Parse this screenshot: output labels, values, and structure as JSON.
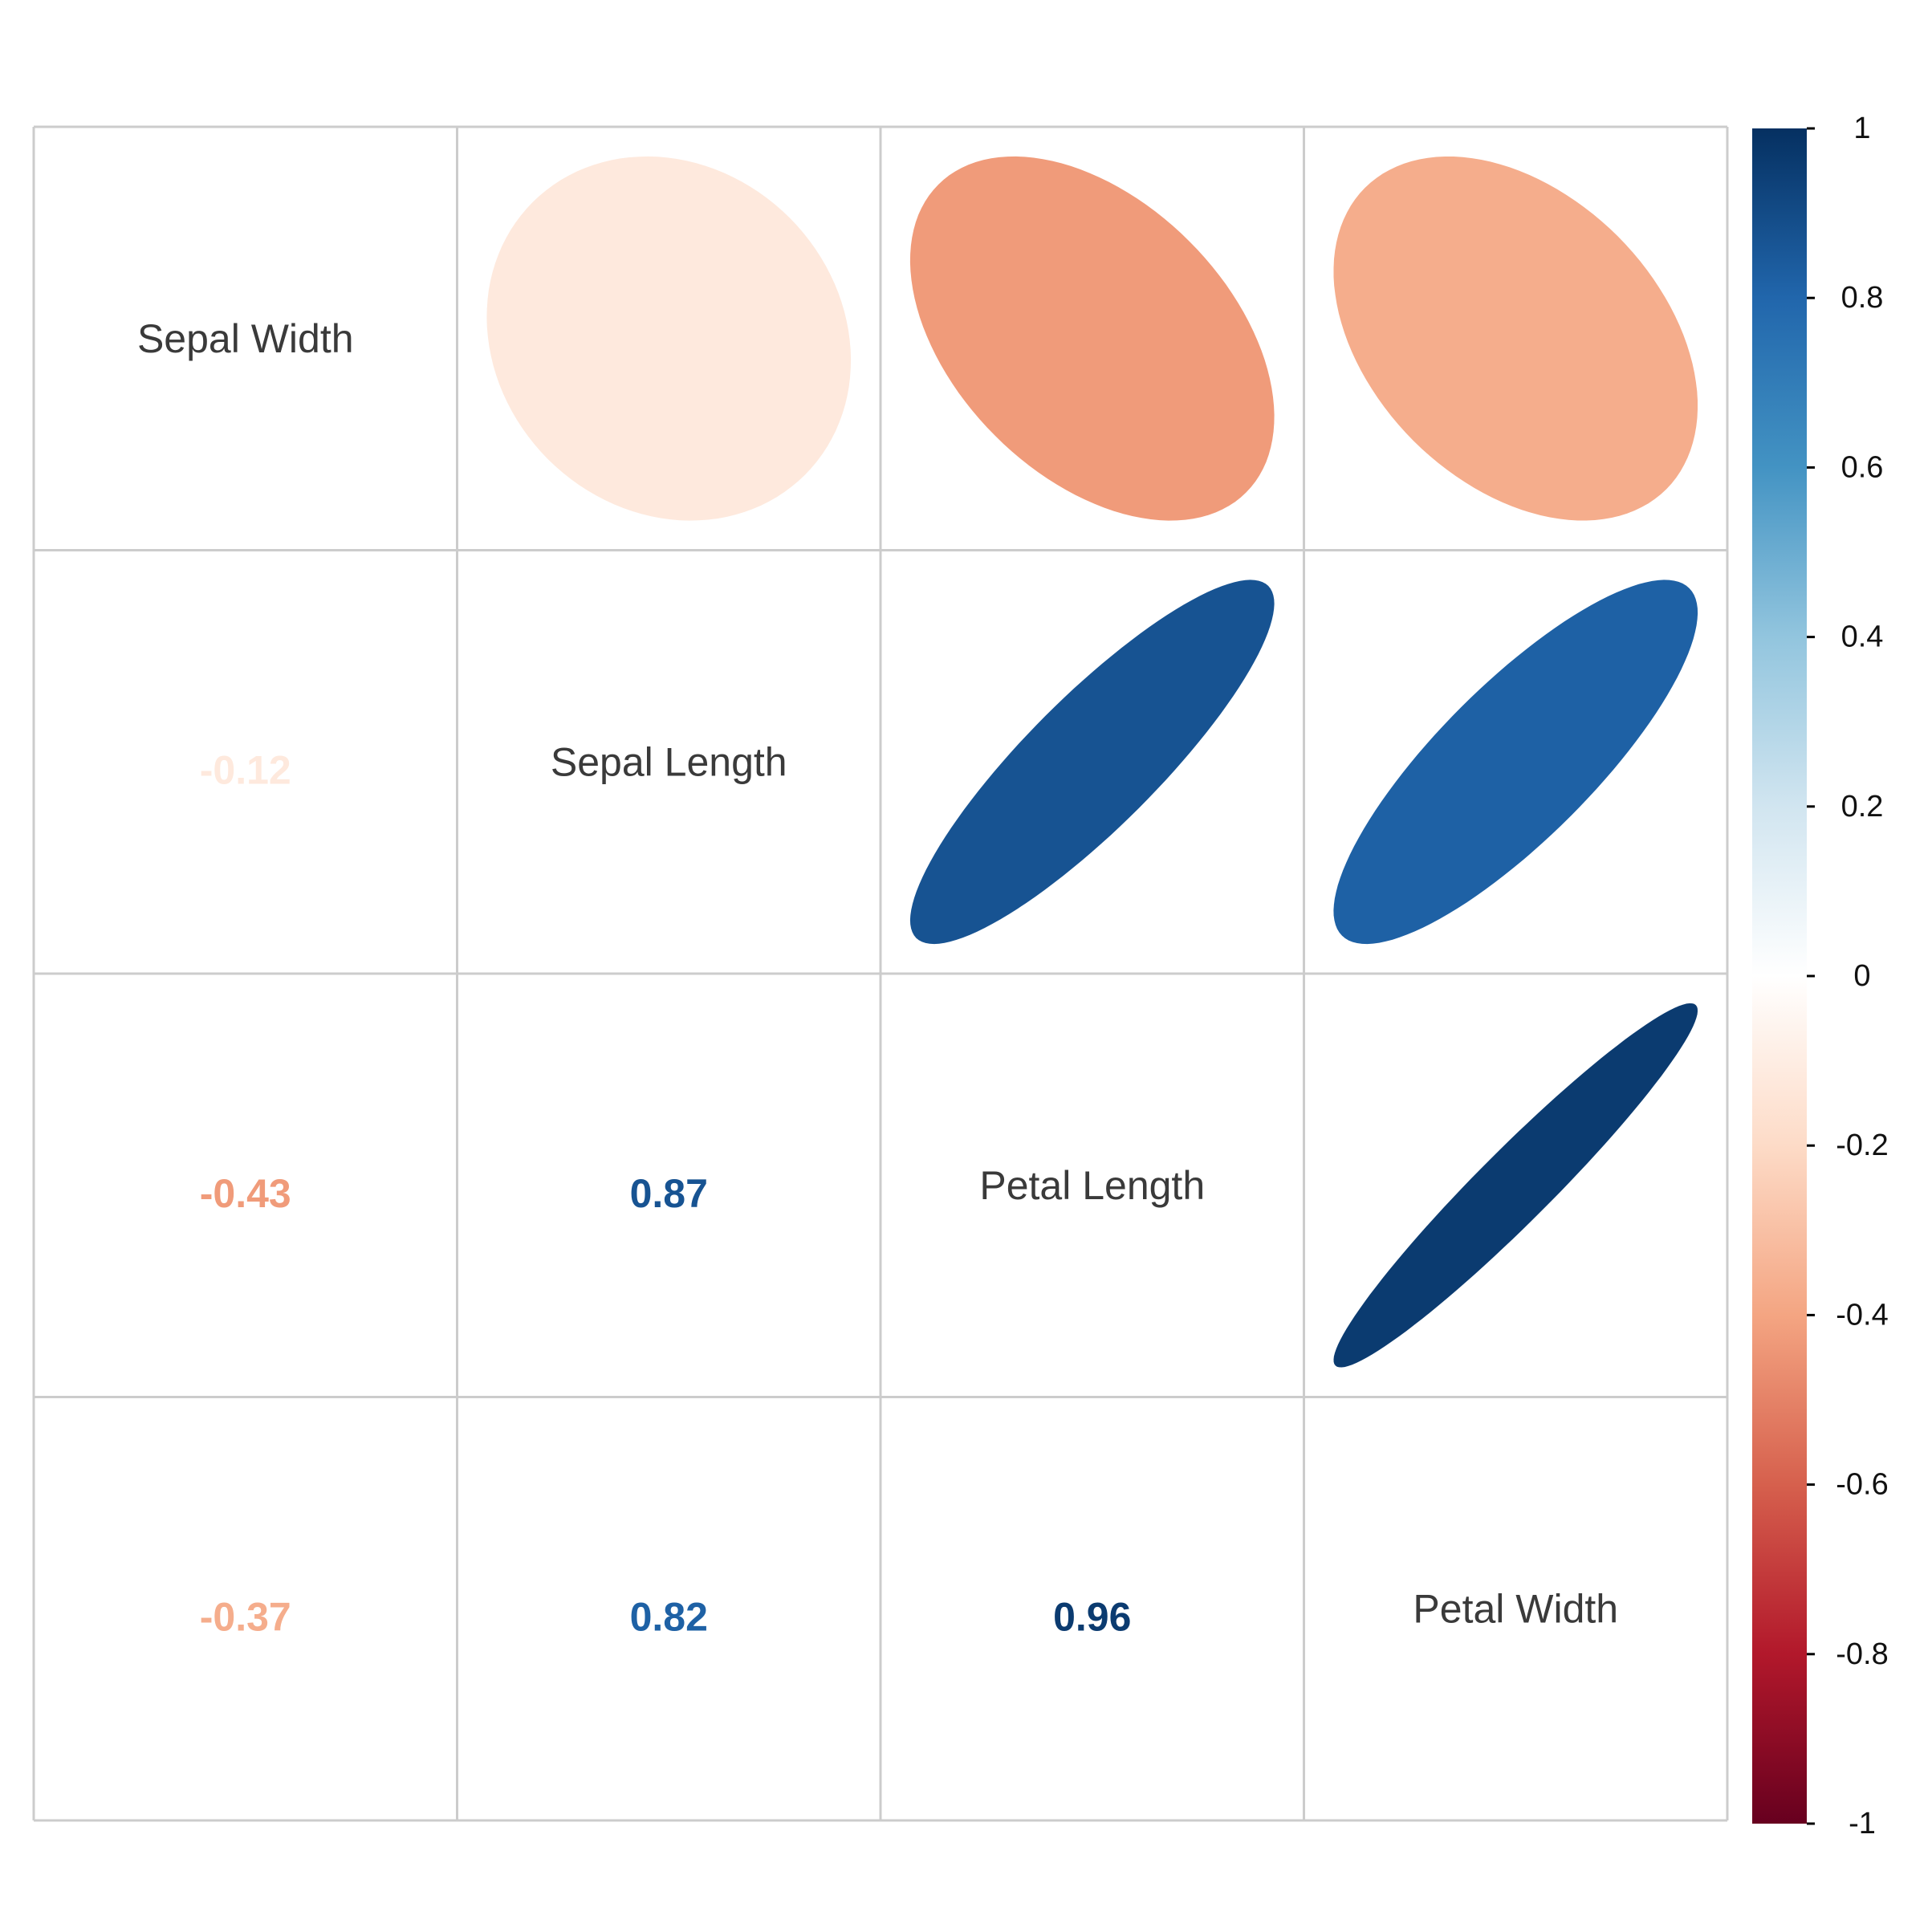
{
  "chart_data": {
    "type": "heatmap",
    "variables": [
      "Sepal Width",
      "Sepal Length",
      "Petal Length",
      "Petal Width"
    ],
    "matrix": [
      [
        1.0,
        -0.12,
        -0.43,
        -0.37
      ],
      [
        -0.12,
        1.0,
        0.87,
        0.82
      ],
      [
        -0.43,
        0.87,
        1.0,
        0.96
      ],
      [
        -0.37,
        0.82,
        0.96,
        1.0
      ]
    ],
    "upper_display": "ellipse",
    "lower_display": "number",
    "diagonal_display": "variable-name",
    "number_format": {
      "decimals": 2,
      "leading_zero": true
    },
    "colorbar": {
      "range": [
        -1,
        1
      ],
      "ticks": [
        1,
        0.8,
        0.6,
        0.4,
        0.2,
        0,
        -0.2,
        -0.4,
        -0.6,
        -0.8,
        -1
      ],
      "tick_labels": [
        "1",
        "0.8",
        "0.6",
        "0.4",
        "0.2",
        "0",
        "-0.2",
        "-0.4",
        "-0.6",
        "-0.8",
        "-1"
      ],
      "colors": [
        "#67001F",
        "#B2182B",
        "#D6604D",
        "#F4A582",
        "#FDDBC7",
        "#FFFFFF",
        "#D1E5F0",
        "#92C5DE",
        "#4393C3",
        "#2166AC",
        "#053061"
      ]
    },
    "grid": true,
    "grid_color": "#cccccc"
  }
}
